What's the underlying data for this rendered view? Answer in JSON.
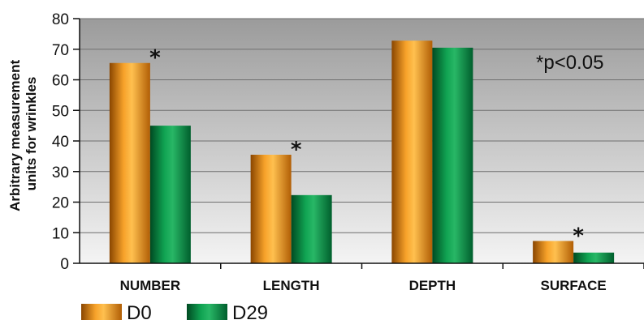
{
  "chart_data": {
    "type": "bar",
    "ylabel": "Arbitrary measurement units for wrinkles",
    "ylabel_lines": [
      "Arbitrary measurement",
      "units for wrinkles"
    ],
    "ylim": [
      0,
      80
    ],
    "yticks": [
      0,
      10,
      20,
      30,
      40,
      50,
      60,
      70,
      80
    ],
    "grid": true,
    "categories": [
      "NUMBER",
      "LENGTH",
      "DEPTH",
      "SURFACE"
    ],
    "series": [
      {
        "name": "D0",
        "values": [
          65.5,
          35.5,
          72.8,
          7.3
        ],
        "color": "#e8850f"
      },
      {
        "name": "D29",
        "values": [
          45,
          22.3,
          70.5,
          3.5
        ],
        "color": "#0e8c45"
      }
    ],
    "significance_marker": "*",
    "significant_categories": [
      "NUMBER",
      "LENGTH",
      "SURFACE"
    ],
    "annotation": "*p<0.05",
    "legend_position": "bottom-left"
  },
  "colors": {
    "plot_background_top": "#9b9b9b",
    "plot_background_bottom": "#f4f4f4",
    "gridline": "#6e6e6e",
    "axis": "#111111"
  }
}
